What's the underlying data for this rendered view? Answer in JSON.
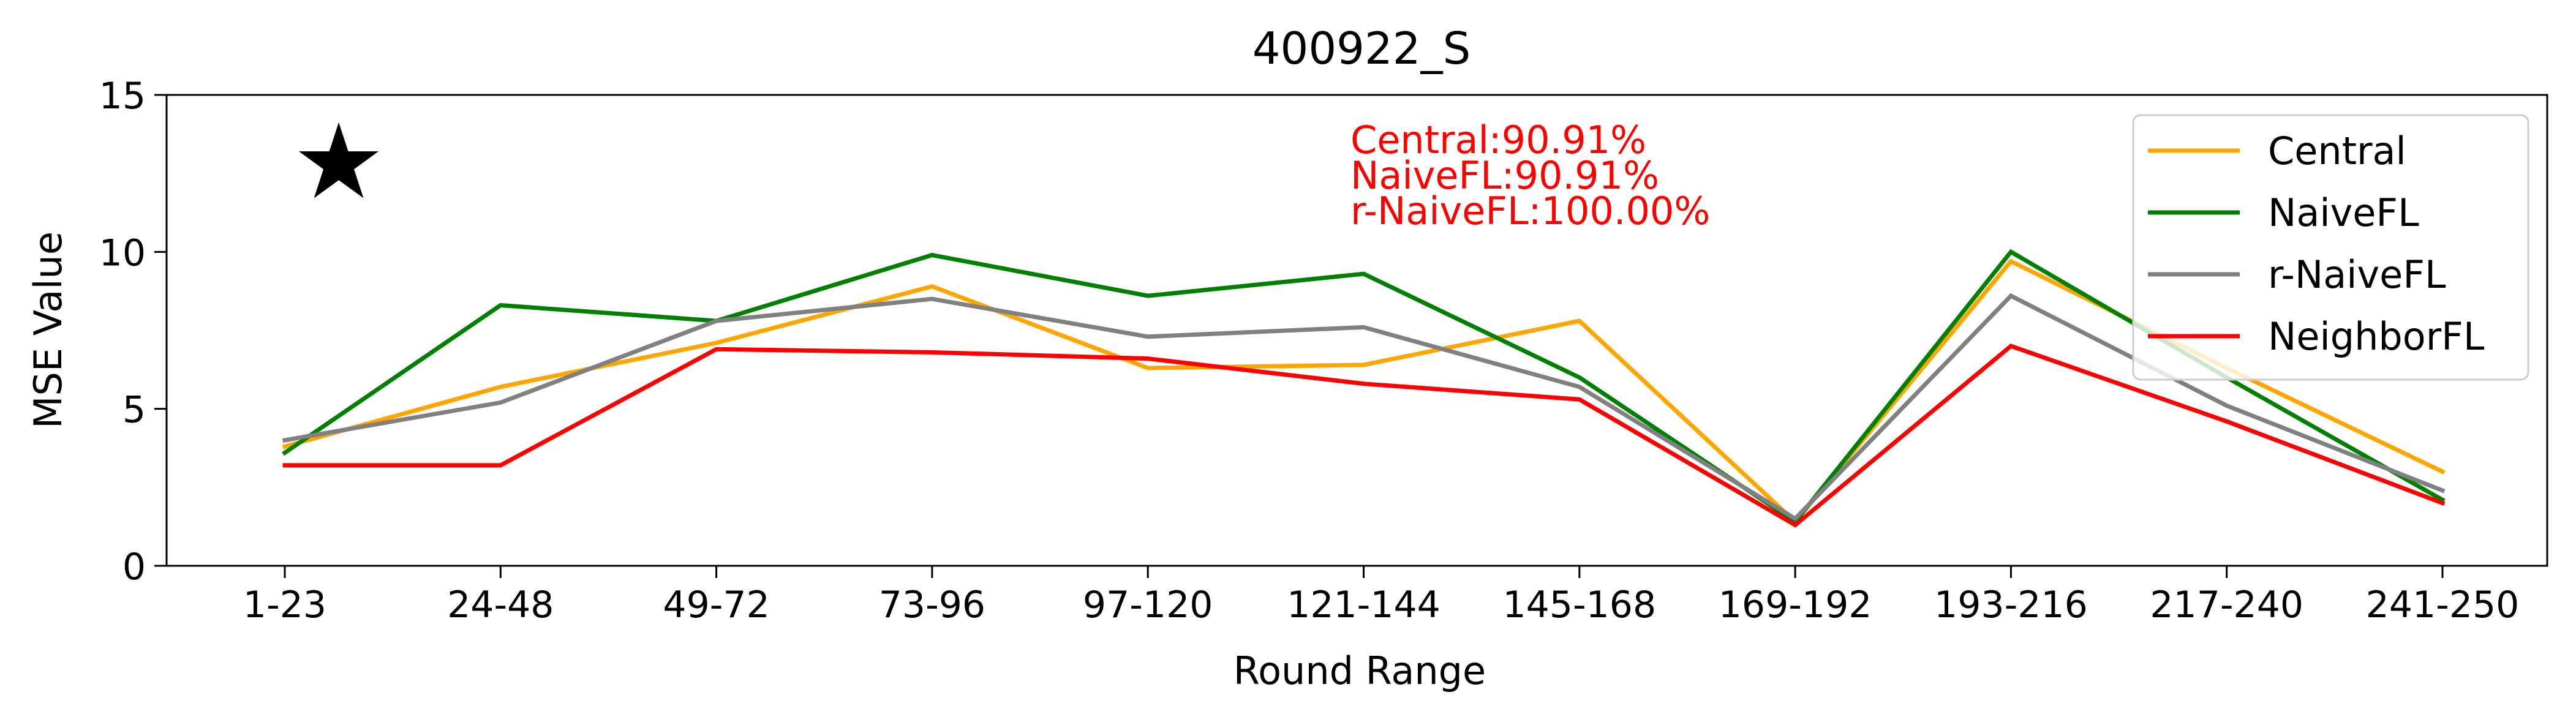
{
  "chart_data": {
    "type": "line",
    "title": "400922_S",
    "xlabel": "Round Range",
    "ylabel": "MSE Value",
    "ylim": [
      0,
      15
    ],
    "yticks": [
      0,
      5,
      10,
      15
    ],
    "grid": false,
    "legend_position": "top-right",
    "categories": [
      "1-23",
      "24-48",
      "49-72",
      "73-96",
      "97-120",
      "121-144",
      "145-168",
      "169-192",
      "193-216",
      "217-240",
      "241-250"
    ],
    "series": [
      {
        "name": "Central",
        "color": "#FFA500",
        "values": [
          3.8,
          5.7,
          7.1,
          8.9,
          6.3,
          6.4,
          7.8,
          1.4,
          9.7,
          6.3,
          3.0
        ]
      },
      {
        "name": "NaiveFL",
        "color": "#008000",
        "values": [
          3.6,
          8.3,
          7.8,
          9.9,
          8.6,
          9.3,
          6.0,
          1.4,
          10.0,
          6.0,
          2.1
        ]
      },
      {
        "name": "r-NaiveFL",
        "color": "#808080",
        "values": [
          4.0,
          5.2,
          7.8,
          8.5,
          7.3,
          7.6,
          5.7,
          1.5,
          8.6,
          5.1,
          2.4
        ]
      },
      {
        "name": "NeighborFL",
        "color": "#FF0000",
        "values": [
          3.2,
          3.2,
          6.9,
          6.8,
          6.6,
          5.8,
          5.3,
          1.3,
          7.0,
          4.6,
          2.0
        ]
      }
    ],
    "annotations": [
      {
        "text": "Central:90.91%",
        "color": "#FF0000"
      },
      {
        "text": "NaiveFL:90.91%",
        "color": "#FF0000"
      },
      {
        "text": "r-NaiveFL:100.00%",
        "color": "#FF0000"
      }
    ],
    "marker": {
      "symbol": "★",
      "name": "star-marker",
      "x_index": 0.25,
      "y": 12.8
    }
  }
}
